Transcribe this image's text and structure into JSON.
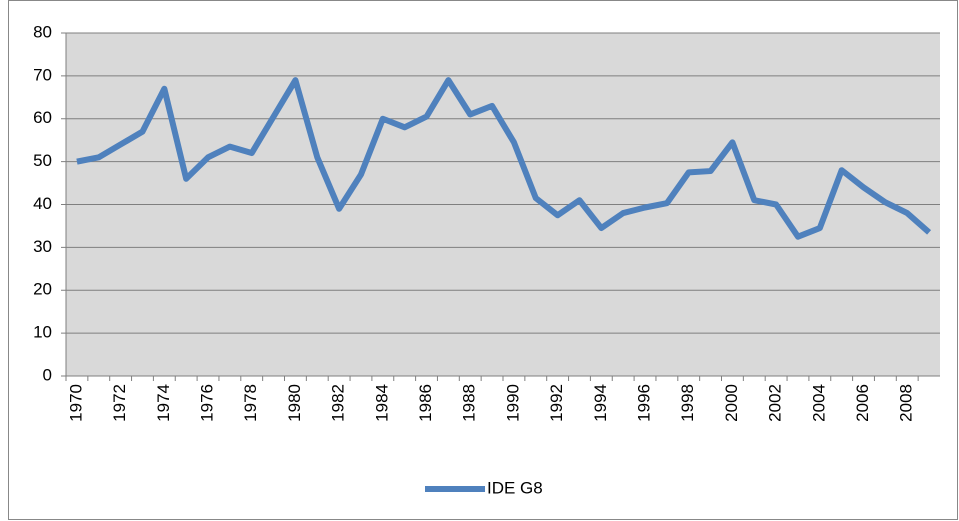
{
  "chart_data": {
    "type": "line",
    "categories": [
      "1970",
      null,
      "1972",
      null,
      "1974",
      null,
      "1976",
      null,
      "1978",
      null,
      "1980",
      null,
      "1982",
      null,
      "1984",
      null,
      "1986",
      null,
      "1988",
      null,
      "1990",
      null,
      "1992",
      null,
      "1994",
      null,
      "1996",
      null,
      "1998",
      null,
      "2000",
      null,
      "2002",
      null,
      "2004",
      null,
      "2006",
      null,
      "2008",
      null
    ],
    "series": [
      {
        "name": "IDE G8",
        "color": "#4f81bd",
        "values": [
          50,
          51,
          54,
          57,
          67,
          46,
          51,
          53.5,
          52,
          60.5,
          69,
          51,
          39,
          47,
          60,
          58,
          60.5,
          69,
          61,
          63,
          54.5,
          41.5,
          37.5,
          41,
          34.5,
          38,
          39.3,
          40.3,
          47.5,
          47.8,
          54.5,
          41,
          40,
          32.5,
          34.5,
          48,
          44,
          40.5,
          38,
          33.5
        ]
      }
    ],
    "ylim": [
      0,
      80
    ],
    "yticks": [
      0,
      10,
      20,
      30,
      40,
      50,
      60,
      70,
      80
    ],
    "grid": true,
    "legend": "bottom"
  }
}
